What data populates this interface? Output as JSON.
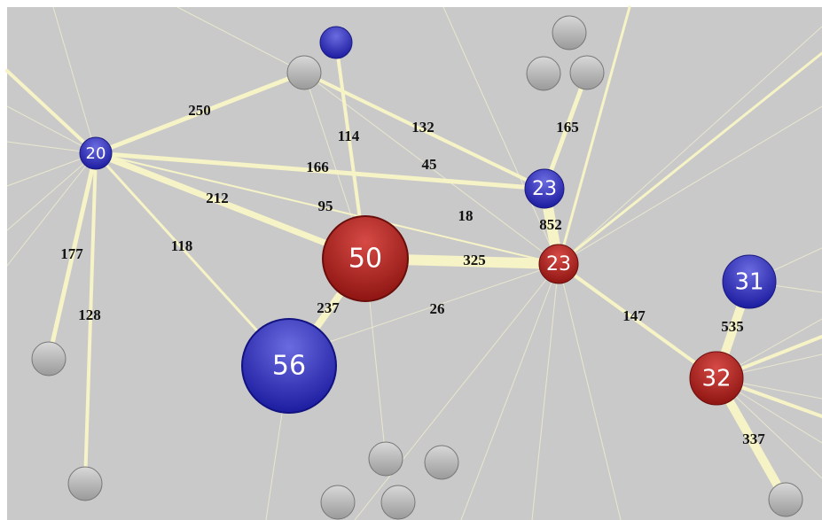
{
  "nodes": [
    {
      "label": "20"
    },
    {
      "label": "50"
    },
    {
      "label": "56"
    },
    {
      "label": "23"
    },
    {
      "label": "23"
    },
    {
      "label": "31"
    },
    {
      "label": "32"
    }
  ],
  "edges": [
    {
      "label": "250"
    },
    {
      "label": "114"
    },
    {
      "label": "132"
    },
    {
      "label": "165"
    },
    {
      "label": "166"
    },
    {
      "label": "45"
    },
    {
      "label": "212"
    },
    {
      "label": "95"
    },
    {
      "label": "18"
    },
    {
      "label": "852"
    },
    {
      "label": "325"
    },
    {
      "label": "177"
    },
    {
      "label": "118"
    },
    {
      "label": "128"
    },
    {
      "label": "237"
    },
    {
      "label": "26"
    },
    {
      "label": "147"
    },
    {
      "label": "535"
    },
    {
      "label": "337"
    }
  ]
}
